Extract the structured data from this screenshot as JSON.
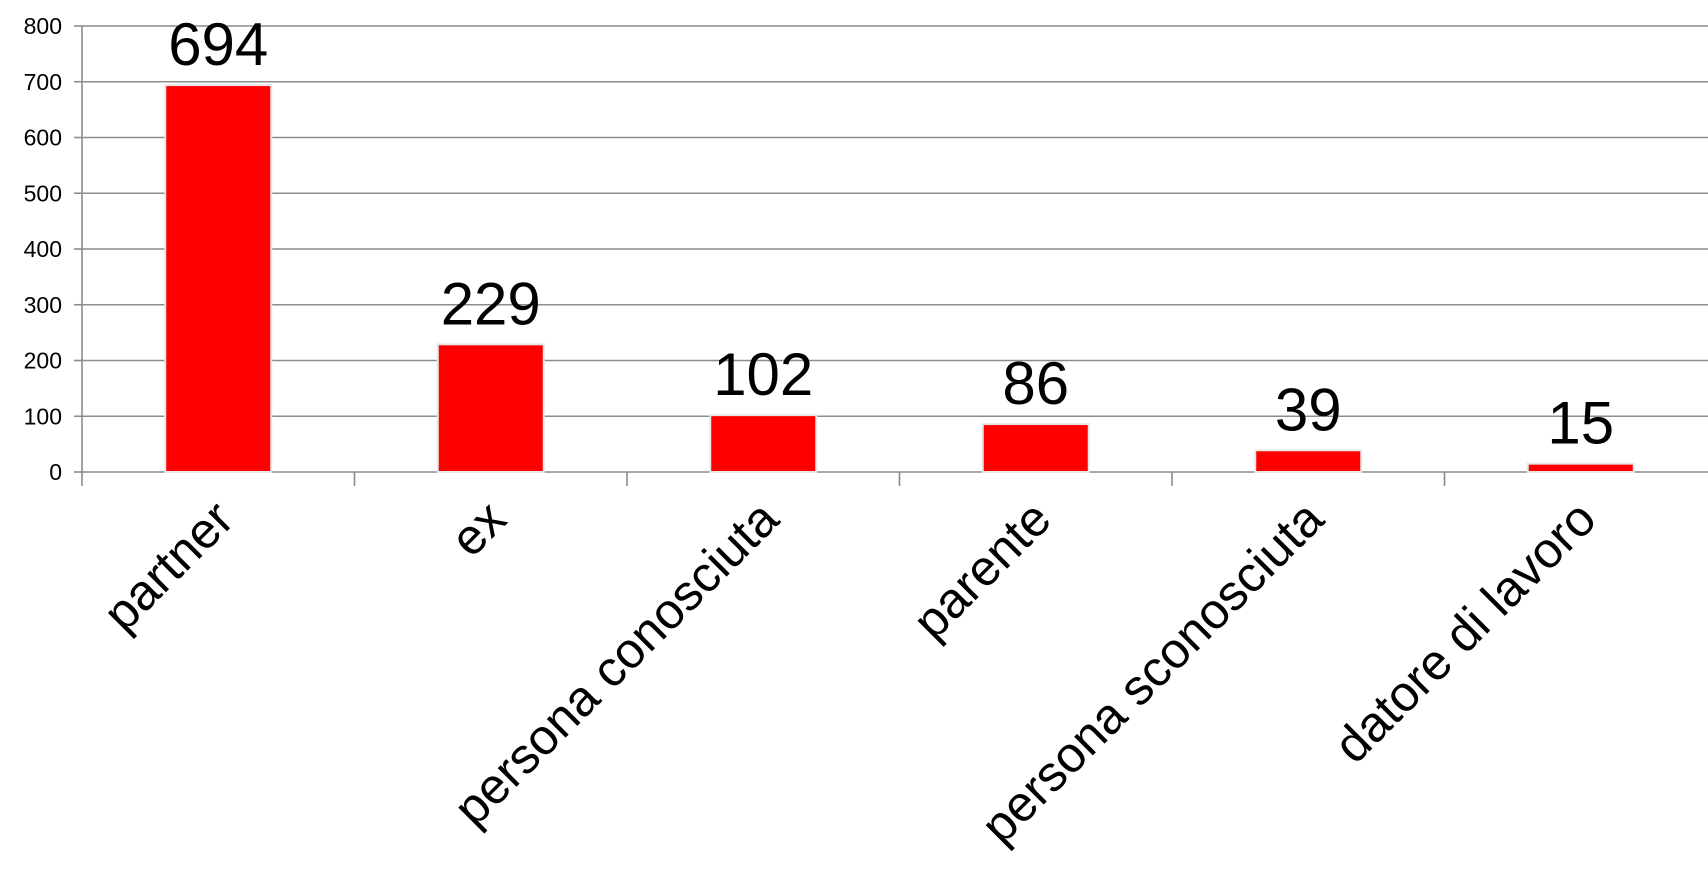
{
  "chart_data": {
    "type": "bar",
    "title": "",
    "xlabel": "",
    "ylabel": "",
    "categories": [
      "partner",
      "ex",
      "persona conosciuta",
      "parente",
      "persona sconosciuta",
      "datore di lavoro"
    ],
    "values": [
      694,
      229,
      102,
      86,
      39,
      15
    ],
    "data_labels": [
      "694",
      "229",
      "102",
      "86",
      "39",
      "15"
    ],
    "ylim": [
      0,
      800
    ],
    "yticks": [
      0,
      100,
      200,
      300,
      400,
      500,
      600,
      700,
      800
    ],
    "ytick_labels": [
      "0",
      "100",
      "200",
      "300",
      "400",
      "500",
      "600",
      "700",
      "800"
    ],
    "grid": true,
    "legend": "none",
    "colors": {
      "bar": "#ff0000",
      "bar_edge": "#e8e8e8",
      "grid": "#8c8c8c",
      "axis": "#8c8c8c"
    }
  }
}
